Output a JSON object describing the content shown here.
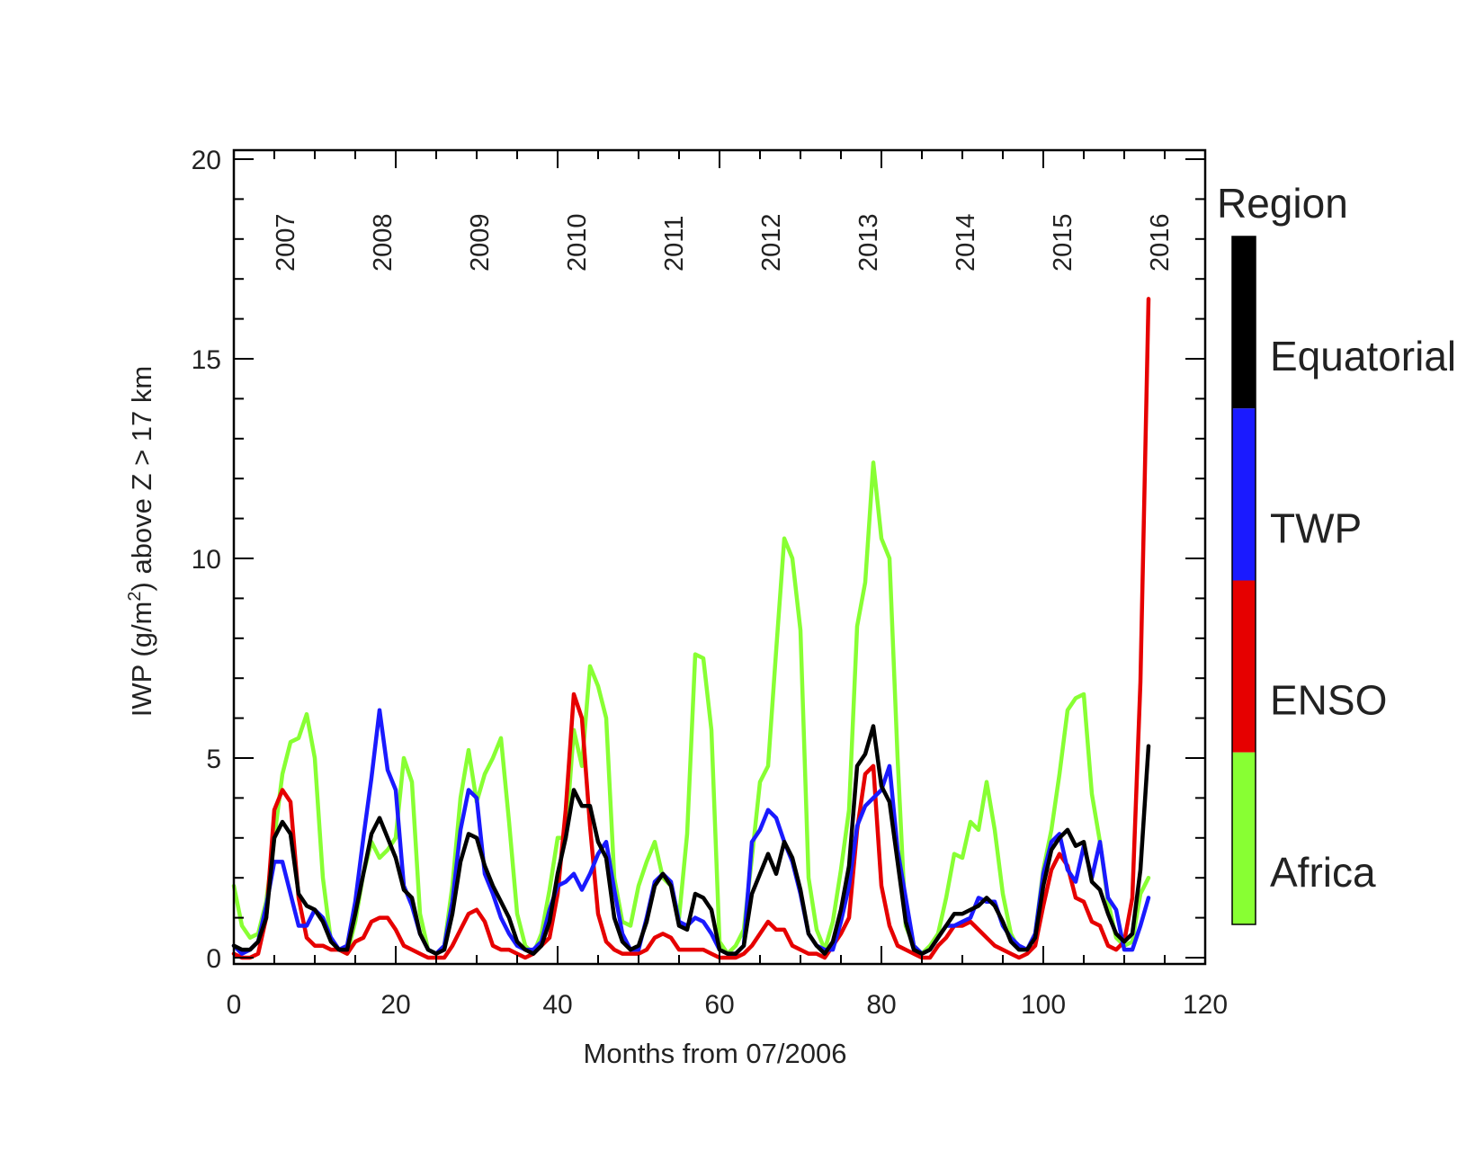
{
  "chart_data": {
    "type": "line",
    "title": "",
    "xlabel": "Months from 07/2006",
    "ylabel": {
      "prefix": "IWP (g/m",
      "sup": "2",
      "suffix": ") above Z > 17 km"
    },
    "xlim": [
      0,
      120
    ],
    "ylim": [
      0,
      20
    ],
    "x_ticks": [
      "0",
      "20",
      "40",
      "60",
      "80",
      "100",
      "120"
    ],
    "y_ticks": [
      "0",
      "5",
      "10",
      "15",
      "20"
    ],
    "year_labels": [
      {
        "x": 6,
        "label": "2007"
      },
      {
        "x": 18,
        "label": "2008"
      },
      {
        "x": 30,
        "label": "2009"
      },
      {
        "x": 42,
        "label": "2010"
      },
      {
        "x": 54,
        "label": "2011"
      },
      {
        "x": 66,
        "label": "2012"
      },
      {
        "x": 78,
        "label": "2013"
      },
      {
        "x": 90,
        "label": "2014"
      },
      {
        "x": 102,
        "label": "2015"
      },
      {
        "x": 114,
        "label": "2016"
      }
    ],
    "legend": {
      "title": "Region",
      "placement": "right",
      "entries": [
        "Equatorial",
        "TWP",
        "ENSO",
        "Africa"
      ]
    },
    "grid": false,
    "series": [
      {
        "name": "Africa",
        "color": "#88ff33",
        "x": [
          0,
          1,
          2,
          3,
          4,
          5,
          6,
          7,
          8,
          9,
          10,
          11,
          12,
          13,
          14,
          15,
          16,
          17,
          18,
          19,
          20,
          21,
          22,
          23,
          24,
          25,
          26,
          27,
          28,
          29,
          30,
          31,
          32,
          33,
          34,
          35,
          36,
          37,
          38,
          39,
          40,
          41,
          42,
          43,
          44,
          45,
          46,
          47,
          48,
          49,
          50,
          51,
          52,
          53,
          54,
          55,
          56,
          57,
          58,
          59,
          60,
          61,
          62,
          63,
          64,
          65,
          66,
          67,
          68,
          69,
          70,
          71,
          72,
          73,
          74,
          75,
          76,
          77,
          78,
          79,
          80,
          81,
          82,
          83,
          84,
          85,
          86,
          87,
          88,
          89,
          90,
          91,
          92,
          93,
          94,
          95,
          96,
          97,
          98,
          99,
          100,
          101,
          102,
          103,
          104,
          105,
          106,
          107,
          108,
          109,
          110,
          111,
          112,
          113
        ],
        "values": [
          1.8,
          0.8,
          0.5,
          0.6,
          1.4,
          3.0,
          4.6,
          5.4,
          5.5,
          6.1,
          5.0,
          2.0,
          0.4,
          0.2,
          0.1,
          0.9,
          2.1,
          2.9,
          2.5,
          2.7,
          3.0,
          5.0,
          4.4,
          1.1,
          0.2,
          0.1,
          0.3,
          1.8,
          4.0,
          5.2,
          3.9,
          4.6,
          5.0,
          5.5,
          3.4,
          1.1,
          0.3,
          0.1,
          0.6,
          1.7,
          3.0,
          3.0,
          5.7,
          4.8,
          7.3,
          6.8,
          6.0,
          2.0,
          0.9,
          0.8,
          1.8,
          2.4,
          2.9,
          2.0,
          1.8,
          1.0,
          3.1,
          7.6,
          7.5,
          5.7,
          0.4,
          0.1,
          0.3,
          0.7,
          2.5,
          4.4,
          4.8,
          7.7,
          10.5,
          10.0,
          8.2,
          2.0,
          0.7,
          0.2,
          0.9,
          2.2,
          3.7,
          8.3,
          9.4,
          12.4,
          10.5,
          10.0,
          5.0,
          0.8,
          0.3,
          0.1,
          0.3,
          0.6,
          1.5,
          2.6,
          2.5,
          3.4,
          3.2,
          4.4,
          3.2,
          1.6,
          0.6,
          0.2,
          0.2,
          0.6,
          2.2,
          3.2,
          4.6,
          6.2,
          6.5,
          6.6,
          4.1,
          2.9,
          1.4,
          0.5,
          0.3,
          0.4,
          1.6,
          2.0
        ]
      },
      {
        "name": "ENSO",
        "color": "#e60000",
        "x": [
          0,
          1,
          2,
          3,
          4,
          5,
          6,
          7,
          8,
          9,
          10,
          11,
          12,
          13,
          14,
          15,
          16,
          17,
          18,
          19,
          20,
          21,
          22,
          23,
          24,
          25,
          26,
          27,
          28,
          29,
          30,
          31,
          32,
          33,
          34,
          35,
          36,
          37,
          38,
          39,
          40,
          41,
          42,
          43,
          44,
          45,
          46,
          47,
          48,
          49,
          50,
          51,
          52,
          53,
          54,
          55,
          56,
          57,
          58,
          59,
          60,
          61,
          62,
          63,
          64,
          65,
          66,
          67,
          68,
          69,
          70,
          71,
          72,
          73,
          74,
          75,
          76,
          77,
          78,
          79,
          80,
          81,
          82,
          83,
          84,
          85,
          86,
          87,
          88,
          89,
          90,
          91,
          92,
          93,
          94,
          95,
          96,
          97,
          98,
          99,
          100,
          101,
          102,
          103,
          104,
          105,
          106,
          107,
          108,
          109,
          110,
          111,
          112,
          113
        ],
        "values": [
          0.1,
          0.0,
          0.0,
          0.1,
          1.0,
          3.7,
          4.2,
          3.9,
          1.5,
          0.5,
          0.3,
          0.3,
          0.2,
          0.2,
          0.1,
          0.4,
          0.5,
          0.9,
          1.0,
          1.0,
          0.7,
          0.3,
          0.2,
          0.1,
          0.0,
          0.0,
          0.0,
          0.3,
          0.7,
          1.1,
          1.2,
          0.9,
          0.3,
          0.2,
          0.2,
          0.1,
          0.0,
          0.1,
          0.3,
          0.5,
          1.6,
          3.7,
          6.6,
          6.0,
          3.3,
          1.1,
          0.4,
          0.2,
          0.1,
          0.1,
          0.1,
          0.2,
          0.5,
          0.6,
          0.5,
          0.2,
          0.2,
          0.2,
          0.2,
          0.1,
          0.0,
          0.0,
          0.0,
          0.1,
          0.3,
          0.6,
          0.9,
          0.7,
          0.7,
          0.3,
          0.2,
          0.1,
          0.1,
          0.0,
          0.3,
          0.6,
          1.0,
          3.2,
          4.6,
          4.8,
          1.8,
          0.8,
          0.3,
          0.2,
          0.1,
          0.0,
          0.0,
          0.3,
          0.5,
          0.8,
          0.8,
          0.9,
          0.7,
          0.5,
          0.3,
          0.2,
          0.1,
          0.0,
          0.1,
          0.3,
          1.3,
          2.2,
          2.6,
          2.3,
          1.5,
          1.4,
          0.9,
          0.8,
          0.3,
          0.2,
          0.4,
          1.5,
          6.9,
          16.5
        ]
      },
      {
        "name": "TWP",
        "color": "#1a1aff",
        "x": [
          0,
          1,
          2,
          3,
          4,
          5,
          6,
          7,
          8,
          9,
          10,
          11,
          12,
          13,
          14,
          15,
          16,
          17,
          18,
          19,
          20,
          21,
          22,
          23,
          24,
          25,
          26,
          27,
          28,
          29,
          30,
          31,
          32,
          33,
          34,
          35,
          36,
          37,
          38,
          39,
          40,
          41,
          42,
          43,
          44,
          45,
          46,
          47,
          48,
          49,
          50,
          51,
          52,
          53,
          54,
          55,
          56,
          57,
          58,
          59,
          60,
          61,
          62,
          63,
          64,
          65,
          66,
          67,
          68,
          69,
          70,
          71,
          72,
          73,
          74,
          75,
          76,
          77,
          78,
          79,
          80,
          81,
          82,
          83,
          84,
          85,
          86,
          87,
          88,
          89,
          90,
          91,
          92,
          93,
          94,
          95,
          96,
          97,
          98,
          99,
          100,
          101,
          102,
          103,
          104,
          105,
          106,
          107,
          108,
          109,
          110,
          111,
          112,
          113
        ],
        "values": [
          0.3,
          0.1,
          0.2,
          0.4,
          1.3,
          2.4,
          2.4,
          1.6,
          0.8,
          0.8,
          1.2,
          1.0,
          0.5,
          0.2,
          0.3,
          1.4,
          3.0,
          4.5,
          6.2,
          4.7,
          4.2,
          1.8,
          1.3,
          0.6,
          0.2,
          0.1,
          0.3,
          1.4,
          3.2,
          4.2,
          4.0,
          2.1,
          1.6,
          1.0,
          0.6,
          0.3,
          0.2,
          0.2,
          0.4,
          1.2,
          1.8,
          1.9,
          2.1,
          1.7,
          2.1,
          2.6,
          2.9,
          1.7,
          0.6,
          0.2,
          0.2,
          1.0,
          1.9,
          2.1,
          1.9,
          0.9,
          0.8,
          1.0,
          0.9,
          0.6,
          0.2,
          0.1,
          0.1,
          0.3,
          2.9,
          3.2,
          3.7,
          3.5,
          2.9,
          2.4,
          1.6,
          0.6,
          0.3,
          0.2,
          0.2,
          0.9,
          1.8,
          3.3,
          3.8,
          4.0,
          4.2,
          4.8,
          2.7,
          1.5,
          0.3,
          0.1,
          0.2,
          0.5,
          0.8,
          0.8,
          0.9,
          1.0,
          1.5,
          1.4,
          1.4,
          0.8,
          0.5,
          0.3,
          0.2,
          0.6,
          2.1,
          2.9,
          3.1,
          2.2,
          1.9,
          2.8,
          2.0,
          2.9,
          1.5,
          1.2,
          0.2,
          0.2,
          0.8,
          1.5
        ]
      },
      {
        "name": "Equatorial",
        "color": "#000000",
        "x": [
          0,
          1,
          2,
          3,
          4,
          5,
          6,
          7,
          8,
          9,
          10,
          11,
          12,
          13,
          14,
          15,
          16,
          17,
          18,
          19,
          20,
          21,
          22,
          23,
          24,
          25,
          26,
          27,
          28,
          29,
          30,
          31,
          32,
          33,
          34,
          35,
          36,
          37,
          38,
          39,
          40,
          41,
          42,
          43,
          44,
          45,
          46,
          47,
          48,
          49,
          50,
          51,
          52,
          53,
          54,
          55,
          56,
          57,
          58,
          59,
          60,
          61,
          62,
          63,
          64,
          65,
          66,
          67,
          68,
          69,
          70,
          71,
          72,
          73,
          74,
          75,
          76,
          77,
          78,
          79,
          80,
          81,
          82,
          83,
          84,
          85,
          86,
          87,
          88,
          89,
          90,
          91,
          92,
          93,
          94,
          95,
          96,
          97,
          98,
          99,
          100,
          101,
          102,
          103,
          104,
          105,
          106,
          107,
          108,
          109,
          110,
          111,
          112,
          113
        ],
        "values": [
          0.3,
          0.2,
          0.2,
          0.4,
          1.0,
          3.0,
          3.4,
          3.1,
          1.6,
          1.3,
          1.2,
          0.9,
          0.4,
          0.2,
          0.2,
          1.1,
          2.1,
          3.1,
          3.5,
          3.0,
          2.5,
          1.7,
          1.5,
          0.6,
          0.2,
          0.1,
          0.2,
          1.1,
          2.4,
          3.1,
          3.0,
          2.3,
          1.8,
          1.4,
          1.0,
          0.4,
          0.2,
          0.1,
          0.3,
          0.9,
          2.1,
          3.0,
          4.2,
          3.8,
          3.8,
          2.9,
          2.5,
          1.0,
          0.4,
          0.2,
          0.3,
          0.9,
          1.8,
          2.1,
          1.8,
          0.8,
          0.7,
          1.6,
          1.5,
          1.2,
          0.2,
          0.1,
          0.1,
          0.3,
          1.6,
          2.1,
          2.6,
          2.1,
          2.9,
          2.5,
          1.7,
          0.6,
          0.3,
          0.1,
          0.4,
          1.2,
          2.3,
          4.8,
          5.1,
          5.8,
          4.3,
          3.9,
          2.4,
          0.9,
          0.2,
          0.1,
          0.2,
          0.5,
          0.8,
          1.1,
          1.1,
          1.2,
          1.3,
          1.5,
          1.3,
          0.9,
          0.4,
          0.2,
          0.2,
          0.5,
          1.8,
          2.7,
          3.0,
          3.2,
          2.8,
          2.9,
          1.9,
          1.7,
          1.1,
          0.6,
          0.4,
          0.6,
          2.2,
          5.3
        ]
      }
    ]
  }
}
